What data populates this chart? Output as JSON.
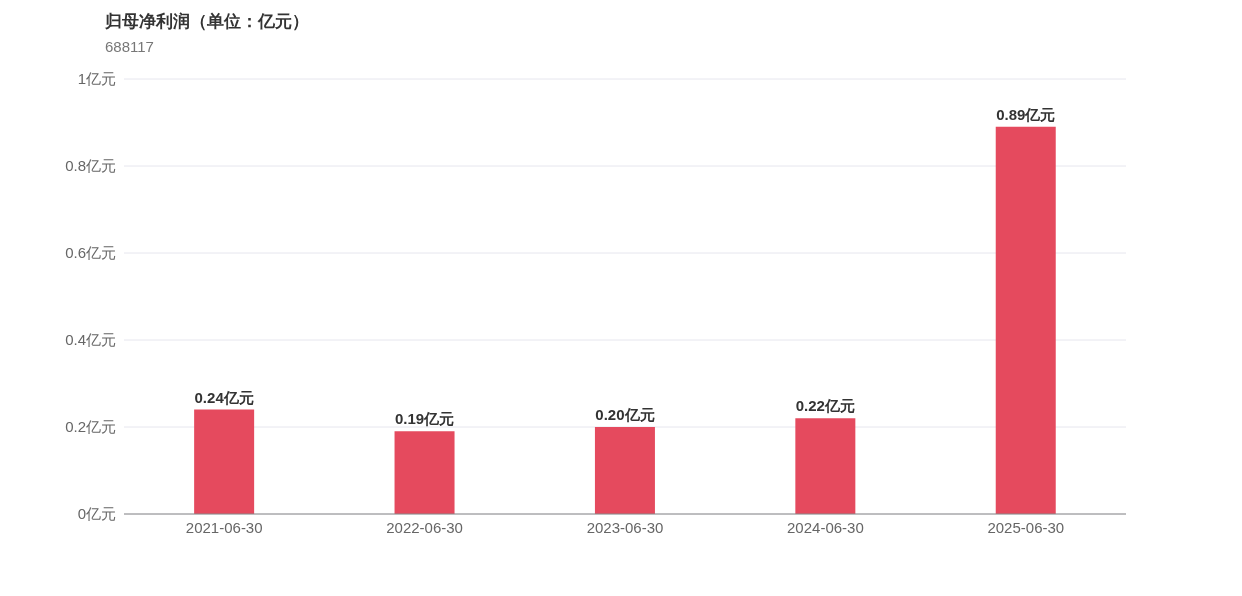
{
  "chart_data": {
    "type": "bar",
    "title": "归母净利润（单位：亿元）",
    "subtitle": "688117",
    "categories": [
      "2021-06-30",
      "2022-06-30",
      "2023-06-30",
      "2024-06-30",
      "2025-06-30"
    ],
    "values": [
      0.24,
      0.19,
      0.2,
      0.22,
      0.89
    ],
    "color": "#e54a5e",
    "value_labels": [
      "0.24亿元",
      "0.19亿元",
      "0.20亿元",
      "0.22亿元",
      "0.89亿元"
    ],
    "ylim": [
      0,
      1
    ],
    "yticks": [
      {
        "value": 0,
        "label": "0亿元"
      },
      {
        "value": 0.2,
        "label": "0.2亿元"
      },
      {
        "value": 0.4,
        "label": "0.4亿元"
      },
      {
        "value": 0.6,
        "label": "0.6亿元"
      },
      {
        "value": 0.8,
        "label": "0.8亿元"
      },
      {
        "value": 1,
        "label": "1亿元"
      }
    ],
    "grid": "y"
  }
}
